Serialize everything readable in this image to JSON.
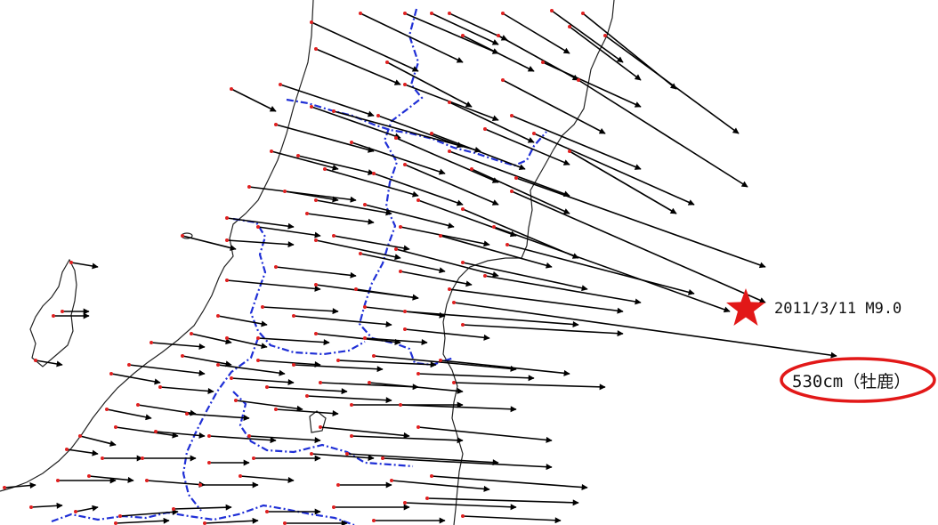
{
  "map": {
    "colors": {
      "coast": "#222222",
      "prefecture_border": "#1f2fd6",
      "arrow": "#000000",
      "station": "#e02020",
      "epicenter": "#e21818",
      "highlight": "#e21818"
    },
    "epicenter": {
      "label": "2011/3/11 M9.0",
      "icon": "star-icon"
    },
    "max_displacement": {
      "label": "530cm（牡鹿）",
      "value_cm": 530,
      "station": "牡鹿"
    }
  }
}
